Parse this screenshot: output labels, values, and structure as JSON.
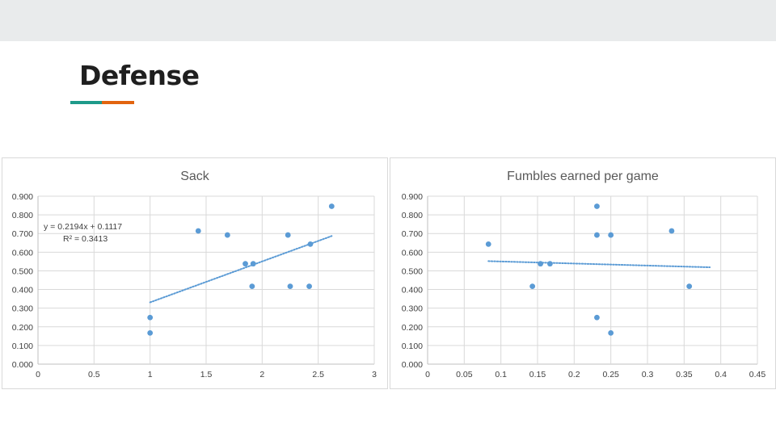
{
  "slide": {
    "title": "Defense",
    "colors": {
      "accent_teal": "#1e9a8a",
      "accent_orange": "#e2640f",
      "marker": "#5b9bd5"
    }
  },
  "chart_data": [
    {
      "type": "scatter",
      "title": "Sack",
      "xlim": [
        0,
        3
      ],
      "ylim": [
        0,
        0.9
      ],
      "x_ticks": [
        "0",
        "0.5",
        "1",
        "1.5",
        "2",
        "2.5",
        "3"
      ],
      "y_ticks": [
        "0.000",
        "0.100",
        "0.200",
        "0.300",
        "0.400",
        "0.500",
        "0.600",
        "0.700",
        "0.800",
        "0.900"
      ],
      "x_tick_values": [
        0,
        0.5,
        1,
        1.5,
        2,
        2.5,
        3
      ],
      "y_tick_values": [
        0,
        0.1,
        0.2,
        0.3,
        0.4,
        0.5,
        0.6,
        0.7,
        0.8,
        0.9
      ],
      "grid": true,
      "points": [
        [
          1.0,
          0.25
        ],
        [
          1.0,
          0.167
        ],
        [
          1.43,
          0.714
        ],
        [
          1.69,
          0.692
        ],
        [
          1.85,
          0.538
        ],
        [
          1.92,
          0.538
        ],
        [
          1.91,
          0.417
        ],
        [
          2.23,
          0.692
        ],
        [
          2.25,
          0.417
        ],
        [
          2.42,
          0.417
        ],
        [
          2.43,
          0.643
        ],
        [
          2.62,
          0.846
        ]
      ],
      "trendline": {
        "x_start": 1.0,
        "x_end": 2.62,
        "slope": 0.2194,
        "intercept": 0.1117
      },
      "equation": "y = 0.2194x + 0.1117",
      "r_squared": "R² = 0.3413"
    },
    {
      "type": "scatter",
      "title": "Fumbles earned per game",
      "xlim": [
        0,
        0.45
      ],
      "ylim": [
        0,
        0.9
      ],
      "x_ticks": [
        "0",
        "0.05",
        "0.1",
        "0.15",
        "0.2",
        "0.25",
        "0.3",
        "0.35",
        "0.4",
        "0.45"
      ],
      "y_ticks": [
        "0.000",
        "0.100",
        "0.200",
        "0.300",
        "0.400",
        "0.500",
        "0.600",
        "0.700",
        "0.800",
        "0.900"
      ],
      "x_tick_values": [
        0,
        0.05,
        0.1,
        0.15,
        0.2,
        0.25,
        0.3,
        0.35,
        0.4,
        0.45
      ],
      "y_tick_values": [
        0,
        0.1,
        0.2,
        0.3,
        0.4,
        0.5,
        0.6,
        0.7,
        0.8,
        0.9
      ],
      "grid": true,
      "points": [
        [
          0.083,
          0.643
        ],
        [
          0.143,
          0.417
        ],
        [
          0.154,
          0.538
        ],
        [
          0.167,
          0.538
        ],
        [
          0.231,
          0.846
        ],
        [
          0.231,
          0.692
        ],
        [
          0.231,
          0.25
        ],
        [
          0.25,
          0.692
        ],
        [
          0.25,
          0.167
        ],
        [
          0.333,
          0.714
        ],
        [
          0.357,
          0.417
        ]
      ],
      "trendline": {
        "x_start": 0.083,
        "x_end": 0.385,
        "y_start": 0.552,
        "y_end": 0.519
      }
    }
  ]
}
